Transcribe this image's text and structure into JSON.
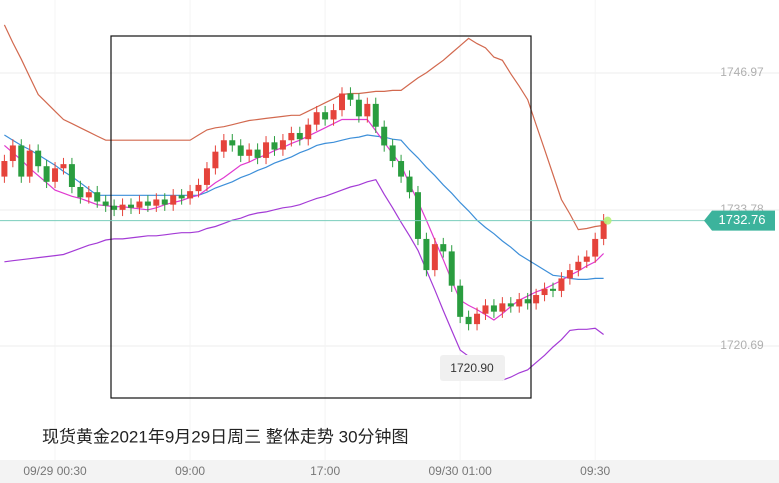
{
  "chart_data": {
    "type": "candlestick",
    "title": "现货黄金2021年9月29日周三 整体走势  30分钟图",
    "annotation": "1720.90",
    "categories": [
      null,
      null,
      null,
      null,
      null,
      null,
      "09/29 00:30",
      null,
      null,
      null,
      null,
      null,
      null,
      null,
      null,
      null,
      null,
      null,
      null,
      null,
      null,
      null,
      "09:00",
      null,
      null,
      null,
      null,
      null,
      null,
      null,
      null,
      null,
      null,
      null,
      null,
      null,
      null,
      null,
      "17:00",
      null,
      null,
      null,
      null,
      null,
      null,
      null,
      null,
      null,
      null,
      null,
      null,
      null,
      null,
      null,
      "09/30 01:00",
      null,
      null,
      null,
      null,
      null,
      null,
      null,
      null,
      null,
      null,
      null,
      null,
      null,
      null,
      null,
      "09:30",
      null
    ],
    "open": [
      1737.0,
      1738.5,
      1740.0,
      1737.0,
      1739.5,
      1738.0,
      1736.5,
      1737.8,
      1738.2,
      1736.0,
      1735.0,
      1735.5,
      1734.6,
      1734.2,
      1733.8,
      1734.3,
      1734.0,
      1734.6,
      1734.2,
      1734.8,
      1734.3,
      1735.2,
      1734.9,
      1735.6,
      1736.2,
      1737.8,
      1739.4,
      1740.5,
      1740.0,
      1739.0,
      1739.6,
      1738.8,
      1740.3,
      1739.6,
      1740.5,
      1741.2,
      1740.6,
      1742.0,
      1743.2,
      1742.5,
      1743.4,
      1745.0,
      1744.4,
      1742.8,
      1744.0,
      1741.8,
      1740.0,
      1738.5,
      1737.0,
      1735.5,
      1731.0,
      1728.0,
      1730.5,
      1729.8,
      1726.5,
      1723.5,
      1722.8,
      1723.8,
      1724.6,
      1724.0,
      1724.8,
      1724.5,
      1725.2,
      1724.8,
      1725.6,
      1726.2,
      1726.0,
      1727.2,
      1728.0,
      1728.8,
      1729.3,
      1731.0
    ],
    "high": [
      1739.1,
      1740.6,
      1740.6,
      1740.1,
      1740.1,
      1738.6,
      1738.4,
      1738.8,
      1738.8,
      1736.6,
      1736.1,
      1736.1,
      1735.2,
      1734.8,
      1734.9,
      1734.9,
      1735.2,
      1735.2,
      1735.4,
      1735.4,
      1735.8,
      1735.8,
      1736.2,
      1736.8,
      1738.4,
      1740.0,
      1741.1,
      1741.1,
      1740.6,
      1740.2,
      1740.2,
      1740.9,
      1740.9,
      1741.1,
      1741.8,
      1741.8,
      1742.6,
      1743.8,
      1743.8,
      1744.0,
      1745.6,
      1745.6,
      1745.0,
      1744.6,
      1744.6,
      1742.4,
      1740.6,
      1739.1,
      1737.6,
      1736.1,
      1731.6,
      1731.1,
      1731.1,
      1730.4,
      1727.1,
      1724.1,
      1724.4,
      1725.2,
      1725.2,
      1725.4,
      1725.4,
      1725.8,
      1725.8,
      1726.2,
      1726.8,
      1726.8,
      1727.8,
      1728.6,
      1729.4,
      1729.9,
      1731.6,
      1733.4
    ],
    "low": [
      1736.4,
      1737.9,
      1736.4,
      1736.4,
      1737.4,
      1735.9,
      1735.9,
      1737.2,
      1735.4,
      1734.4,
      1734.4,
      1734.0,
      1733.6,
      1733.2,
      1733.2,
      1733.4,
      1733.4,
      1733.6,
      1733.6,
      1733.7,
      1733.7,
      1734.3,
      1734.3,
      1735.0,
      1735.6,
      1737.2,
      1738.8,
      1739.4,
      1738.4,
      1738.4,
      1738.2,
      1738.2,
      1739.0,
      1739.0,
      1739.9,
      1740.0,
      1740.0,
      1741.4,
      1741.9,
      1741.9,
      1742.8,
      1743.8,
      1742.2,
      1742.2,
      1741.2,
      1739.4,
      1737.9,
      1736.4,
      1734.9,
      1730.4,
      1727.4,
      1727.4,
      1729.2,
      1725.9,
      1722.9,
      1722.2,
      1722.2,
      1723.2,
      1723.4,
      1723.4,
      1723.9,
      1723.9,
      1724.2,
      1724.2,
      1725.0,
      1725.4,
      1725.4,
      1726.6,
      1727.4,
      1728.2,
      1728.7,
      1730.4
    ],
    "close": [
      1738.5,
      1740.0,
      1737.0,
      1739.5,
      1738.0,
      1736.5,
      1737.8,
      1738.2,
      1736.0,
      1735.0,
      1735.5,
      1734.6,
      1734.2,
      1733.8,
      1734.3,
      1734.0,
      1734.6,
      1734.2,
      1734.8,
      1734.3,
      1735.2,
      1734.9,
      1735.6,
      1736.2,
      1737.8,
      1739.4,
      1740.5,
      1740.0,
      1739.0,
      1739.6,
      1738.8,
      1740.3,
      1739.6,
      1740.5,
      1741.2,
      1740.6,
      1742.0,
      1743.2,
      1742.5,
      1743.4,
      1745.0,
      1744.4,
      1742.8,
      1744.0,
      1741.8,
      1740.0,
      1738.5,
      1737.0,
      1735.5,
      1731.0,
      1728.0,
      1730.5,
      1729.8,
      1726.5,
      1723.5,
      1722.8,
      1723.8,
      1724.6,
      1724.0,
      1724.8,
      1724.5,
      1725.2,
      1724.8,
      1725.6,
      1726.2,
      1726.0,
      1727.2,
      1728.0,
      1728.8,
      1729.3,
      1731.0,
      1732.76
    ],
    "up_color": "#e5433b",
    "down_color": "#2a9d3f",
    "series": [
      {
        "color": "#d2694f",
        "values": [
          1751.6,
          1749.9,
          1748.3,
          1746.6,
          1744.9,
          1744.1,
          1743.3,
          1742.5,
          1742.1,
          1741.7,
          1741.3,
          1740.9,
          1740.5,
          1740.5,
          1740.5,
          1740.5,
          1740.5,
          1740.5,
          1740.5,
          1740.5,
          1740.5,
          1740.5,
          1740.5,
          1741.0,
          1741.5,
          1741.7,
          1741.8,
          1742.0,
          1742.2,
          1742.4,
          1742.5,
          1742.6,
          1742.7,
          1742.8,
          1742.9,
          1742.9,
          1743.3,
          1743.7,
          1744.1,
          1744.5,
          1744.9,
          1745.0,
          1745.0,
          1745.1,
          1745.2,
          1745.2,
          1745.3,
          1745.3,
          1745.9,
          1746.5,
          1747.0,
          1747.6,
          1748.2,
          1748.9,
          1749.6,
          1750.3,
          1749.8,
          1749.4,
          1748.5,
          1748.2,
          1746.9,
          1745.7,
          1744.4,
          1742.0,
          1739.6,
          1737.2,
          1734.8,
          1733.4,
          1731.9,
          1732.0,
          1732.2,
          1732.3
        ]
      },
      {
        "color": "#3d8fd9",
        "values": [
          1741.0,
          1740.5,
          1740.0,
          1739.6,
          1739.1,
          1738.6,
          1738.1,
          1737.5,
          1737.0,
          1736.4,
          1735.8,
          1735.2,
          1735.2,
          1735.2,
          1735.2,
          1735.2,
          1735.2,
          1735.2,
          1735.2,
          1735.2,
          1735.2,
          1735.2,
          1735.2,
          1735.2,
          1735.5,
          1735.9,
          1736.2,
          1736.5,
          1736.9,
          1737.2,
          1737.6,
          1737.9,
          1738.3,
          1738.6,
          1738.9,
          1739.3,
          1739.6,
          1740.0,
          1740.2,
          1740.3,
          1740.5,
          1740.7,
          1740.8,
          1741.0,
          1740.9,
          1740.8,
          1740.6,
          1740.5,
          1739.6,
          1738.8,
          1737.9,
          1737.1,
          1736.2,
          1735.4,
          1734.5,
          1733.7,
          1732.8,
          1732.1,
          1731.5,
          1730.8,
          1730.2,
          1729.5,
          1729.0,
          1728.5,
          1728.0,
          1727.5,
          1727.4,
          1727.2,
          1727.1,
          1727.1,
          1727.2,
          1727.2
        ]
      },
      {
        "color": "#a43bd6",
        "values": [
          1728.8,
          1728.9,
          1729.0,
          1729.1,
          1729.2,
          1729.3,
          1729.4,
          1729.5,
          1729.8,
          1730.1,
          1730.4,
          1730.6,
          1730.9,
          1731.0,
          1731.0,
          1731.1,
          1731.2,
          1731.3,
          1731.3,
          1731.4,
          1731.5,
          1731.6,
          1731.6,
          1731.7,
          1732.0,
          1732.2,
          1732.5,
          1732.8,
          1733.0,
          1733.3,
          1733.5,
          1733.6,
          1733.8,
          1734.0,
          1734.1,
          1734.3,
          1734.6,
          1734.9,
          1735.1,
          1735.4,
          1735.7,
          1736.0,
          1736.2,
          1736.5,
          1736.7,
          1735.3,
          1734.0,
          1732.6,
          1731.3,
          1729.9,
          1728.0,
          1726.1,
          1724.1,
          1722.2,
          1720.3,
          1719.7,
          1719.1,
          1718.6,
          1718.0,
          1717.4,
          1717.7,
          1718.1,
          1718.4,
          1719.1,
          1719.8,
          1720.6,
          1721.3,
          1722.2,
          1722.3,
          1722.3,
          1722.4,
          1721.8
        ]
      },
      {
        "color": "#e03ad0",
        "values": [
          1740.0,
          1739.3,
          1738.6,
          1737.8,
          1737.1,
          1736.4,
          1735.7,
          1735.4,
          1735.1,
          1734.9,
          1734.6,
          1734.3,
          1734.2,
          1734.1,
          1734.1,
          1734.0,
          1733.9,
          1733.8,
          1734.0,
          1734.3,
          1734.5,
          1734.7,
          1735.0,
          1735.2,
          1735.8,
          1736.4,
          1736.9,
          1737.5,
          1738.1,
          1738.4,
          1738.8,
          1739.1,
          1739.5,
          1739.8,
          1740.2,
          1740.5,
          1740.9,
          1741.3,
          1741.7,
          1742.1,
          1742.5,
          1742.5,
          1742.5,
          1742.5,
          1741.4,
          1740.3,
          1739.2,
          1738.1,
          1736.3,
          1734.6,
          1732.8,
          1730.9,
          1729.0,
          1727.0,
          1725.1,
          1724.6,
          1724.2,
          1723.7,
          1723.2,
          1723.8,
          1724.5,
          1725.1,
          1725.5,
          1725.9,
          1726.2,
          1726.6,
          1727.0,
          1727.5,
          1727.9,
          1728.4,
          1728.8,
          1729.6
        ]
      }
    ],
    "ylim": [
      1709.72,
      1754.0
    ],
    "yticks": [
      1746.97,
      1733.78,
      1720.69
    ],
    "grid": true
  }
}
